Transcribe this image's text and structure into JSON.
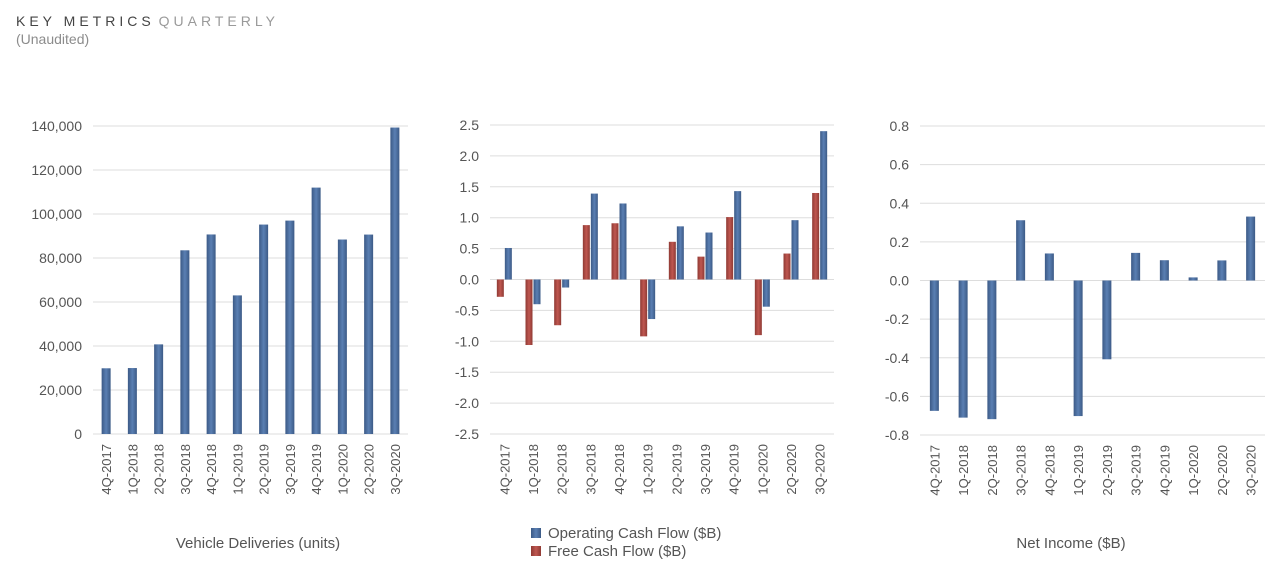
{
  "header": {
    "title_main": "KEY METRICS",
    "title_sub": "QUARTERLY",
    "subtitle": "(Unaudited)"
  },
  "colors": {
    "blue": "#4a6b9a",
    "red": "#a9463f",
    "grid": "#dddddd",
    "text": "#555555"
  },
  "chart_data": [
    {
      "type": "bar",
      "title": "Vehicle Deliveries (units)",
      "categories": [
        "4Q-2017",
        "1Q-2018",
        "2Q-2018",
        "3Q-2018",
        "4Q-2018",
        "1Q-2019",
        "2Q-2019",
        "3Q-2019",
        "4Q-2019",
        "1Q-2020",
        "2Q-2020",
        "3Q-2020"
      ],
      "series": [
        {
          "name": "Vehicle Deliveries",
          "color": "#4a6b9a",
          "values": [
            29870,
            29980,
            40740,
            83500,
            90700,
            63000,
            95200,
            97000,
            112000,
            88400,
            90650,
            139300
          ]
        }
      ],
      "ylim": [
        0,
        140000
      ],
      "yticks": [
        0,
        20000,
        40000,
        60000,
        80000,
        100000,
        120000,
        140000
      ],
      "ytick_labels": [
        "0",
        "20,000",
        "40,000",
        "60,000",
        "80,000",
        "100,000",
        "120,000",
        "140,000"
      ],
      "grid": true,
      "legend": false
    },
    {
      "type": "bar",
      "title": "",
      "categories": [
        "4Q-2017",
        "1Q-2018",
        "2Q-2018",
        "3Q-2018",
        "4Q-2018",
        "1Q-2019",
        "2Q-2019",
        "3Q-2019",
        "4Q-2019",
        "1Q-2020",
        "2Q-2020",
        "3Q-2020"
      ],
      "series": [
        {
          "name": "Free Cash Flow ($B)",
          "color": "#a9463f",
          "values": [
            -0.28,
            -1.06,
            -0.74,
            0.88,
            0.91,
            -0.92,
            0.61,
            0.37,
            1.01,
            -0.9,
            0.42,
            1.4
          ]
        },
        {
          "name": "Operating Cash Flow ($B)",
          "color": "#4a6b9a",
          "values": [
            0.51,
            -0.4,
            -0.13,
            1.39,
            1.23,
            -0.64,
            0.86,
            0.76,
            1.43,
            -0.44,
            0.96,
            2.4
          ]
        }
      ],
      "ylim": [
        -2.5,
        2.5
      ],
      "yticks": [
        -2.5,
        -2.0,
        -1.5,
        -1.0,
        -0.5,
        0.0,
        0.5,
        1.0,
        1.5,
        2.0,
        2.5
      ],
      "ytick_labels": [
        "-2.5",
        "-2.0",
        "-1.5",
        "-1.0",
        "-0.5",
        "0.0",
        "0.5",
        "1.0",
        "1.5",
        "2.0",
        "2.5"
      ],
      "grid": true,
      "legend": "bottom-center",
      "legend_entries": [
        {
          "label": "Operating Cash Flow ($B)",
          "color": "#4a6b9a"
        },
        {
          "label": "Free Cash Flow ($B)",
          "color": "#a9463f"
        }
      ]
    },
    {
      "type": "bar",
      "title": "Net Income ($B)",
      "categories": [
        "4Q-2017",
        "1Q-2018",
        "2Q-2018",
        "3Q-2018",
        "4Q-2018",
        "1Q-2019",
        "2Q-2019",
        "3Q-2019",
        "4Q-2019",
        "1Q-2020",
        "2Q-2020",
        "3Q-2020"
      ],
      "series": [
        {
          "name": "Net Income",
          "color": "#4a6b9a",
          "values": [
            -0.675,
            -0.71,
            -0.718,
            0.312,
            0.14,
            -0.702,
            -0.408,
            0.143,
            0.105,
            0.016,
            0.104,
            0.331
          ]
        }
      ],
      "ylim": [
        -0.8,
        0.8
      ],
      "yticks": [
        -0.8,
        -0.6,
        -0.4,
        -0.2,
        0.0,
        0.2,
        0.4,
        0.6,
        0.8
      ],
      "ytick_labels": [
        "-0.8",
        "-0.6",
        "-0.4",
        "-0.2",
        "0.0",
        "0.2",
        "0.4",
        "0.6",
        "0.8"
      ],
      "grid": true,
      "legend": false
    }
  ]
}
